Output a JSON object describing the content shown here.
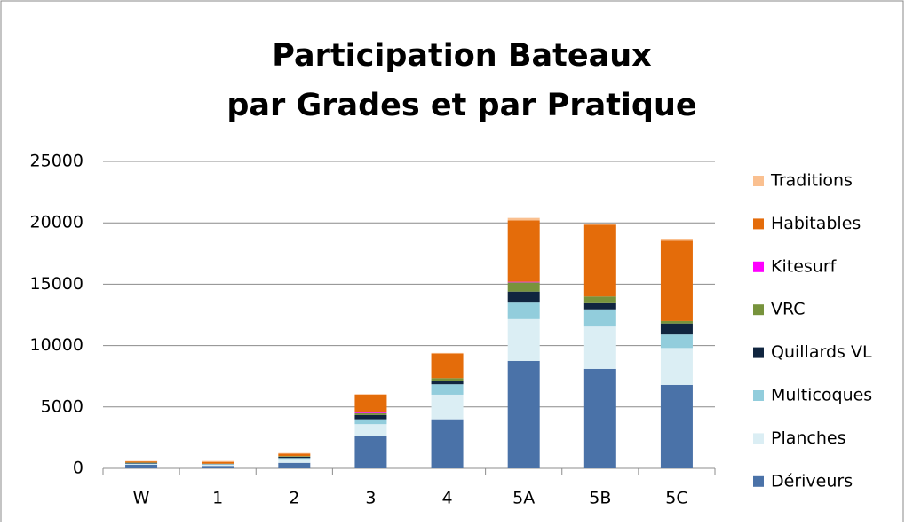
{
  "chart_data": {
    "type": "stacked_bar",
    "title": [
      "Participation Bateaux",
      "par Grades et par Pratique"
    ],
    "categories": [
      "W",
      "1",
      "2",
      "3",
      "4",
      "5A",
      "5B",
      "5C"
    ],
    "series": [
      {
        "name": "Dériveurs",
        "color": "#4a72a8",
        "values": [
          300,
          200,
          450,
          2650,
          4000,
          8750,
          8100,
          6800
        ]
      },
      {
        "name": "Planches",
        "color": "#dbeef4",
        "values": [
          50,
          100,
          250,
          950,
          2000,
          3400,
          3450,
          3000
        ]
      },
      {
        "name": "Multicoques",
        "color": "#92cddc",
        "values": [
          50,
          50,
          150,
          400,
          850,
          1350,
          1400,
          1100
        ]
      },
      {
        "name": "Quillards VL",
        "color": "#10253f",
        "values": [
          50,
          20,
          100,
          350,
          300,
          900,
          500,
          900
        ]
      },
      {
        "name": "VRC",
        "color": "#77933c",
        "values": [
          20,
          10,
          50,
          150,
          200,
          750,
          550,
          200
        ]
      },
      {
        "name": "Kitesurf",
        "color": "#ff00ff",
        "values": [
          0,
          0,
          0,
          100,
          0,
          50,
          0,
          0
        ]
      },
      {
        "name": "Habitables",
        "color": "#e46c0a",
        "values": [
          100,
          150,
          200,
          1400,
          2000,
          5000,
          5850,
          6550
        ]
      },
      {
        "name": "Traditions",
        "color": "#fac090",
        "values": [
          30,
          70,
          50,
          50,
          50,
          200,
          50,
          150
        ]
      }
    ],
    "ylim": [
      0,
      25000
    ],
    "yticks": [
      0,
      5000,
      10000,
      15000,
      20000,
      25000
    ],
    "grid": true,
    "legend": "right"
  }
}
